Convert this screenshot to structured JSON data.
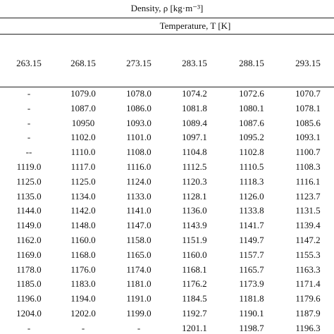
{
  "header": {
    "title": "Density, ρ [kg·m⁻³]",
    "subtitle": "Temperature, T [K]"
  },
  "table": {
    "columns": [
      "263.15",
      "268.15",
      "273.15",
      "283.15",
      "288.15",
      "293.15"
    ],
    "rows": [
      [
        "-",
        "1079.0",
        "1078.0",
        "1074.2",
        "1072.6",
        "1070.7"
      ],
      [
        "-",
        "1087.0",
        "1086.0",
        "1081.8",
        "1080.1",
        "1078.1"
      ],
      [
        "-",
        "10950",
        "1093.0",
        "1089.4",
        "1087.6",
        "1085.6"
      ],
      [
        "-",
        "1102.0",
        "1101.0",
        "1097.1",
        "1095.2",
        "1093.1"
      ],
      [
        "--",
        "1110.0",
        "1108.0",
        "1104.8",
        "1102.8",
        "1100.7"
      ],
      [
        "1119.0",
        "1117.0",
        "1116.0",
        "1112.5",
        "1110.5",
        "1108.3"
      ],
      [
        "1125.0",
        "1125.0",
        "1124.0",
        "1120.3",
        "1118.3",
        "1116.1"
      ],
      [
        "1135.0",
        "1134.0",
        "1133.0",
        "1128.1",
        "1126.0",
        "1123.7"
      ],
      [
        "1144.0",
        "1142.0",
        "1141.0",
        "1136.0",
        "1133.8",
        "1131.5"
      ],
      [
        "1149.0",
        "1148.0",
        "1147.0",
        "1143.9",
        "1141.7",
        "1139.4"
      ],
      [
        "1162.0",
        "1160.0",
        "1158.0",
        "1151.9",
        "1149.7",
        "1147.2"
      ],
      [
        "1169.0",
        "1168.0",
        "1165.0",
        "1160.0",
        "1157.7",
        "1155.3"
      ],
      [
        "1178.0",
        "1176.0",
        "1174.0",
        "1168.1",
        "1165.7",
        "1163.3"
      ],
      [
        "1185.0",
        "1183.0",
        "1181.0",
        "1176.2",
        "1173.9",
        "1171.4"
      ],
      [
        "1196.0",
        "1194.0",
        "1191.0",
        "1184.5",
        "1181.8",
        "1179.6"
      ],
      [
        "1204.0",
        "1202.0",
        "1199.0",
        "1192.7",
        "1190.1",
        "1187.9"
      ],
      [
        "-",
        "-",
        "-",
        "1201.1",
        "1198.7",
        "1196.3"
      ]
    ]
  }
}
